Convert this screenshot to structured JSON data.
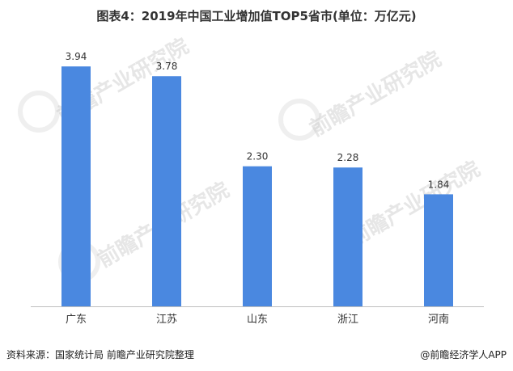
{
  "title": "图表4：2019年中国工业增加值TOP5省市(单位：万亿元)",
  "watermark": "前瞻产业研究院",
  "footer": {
    "source": "资料来源：国家统计局 前瞻产业研究院整理",
    "credit": "@前瞻经济学人APP"
  },
  "colors": {
    "bar": "#4a88e0",
    "axis": "#bfbfbf",
    "text": "#333333"
  },
  "chart_data": {
    "type": "bar",
    "title": "图表4：2019年中国工业增加值TOP5省市(单位：万亿元)",
    "categories": [
      "广东",
      "江苏",
      "山东",
      "浙江",
      "河南"
    ],
    "values": [
      3.94,
      3.78,
      2.3,
      2.28,
      1.84
    ],
    "value_labels": [
      "3.94",
      "3.78",
      "2.30",
      "2.28",
      "1.84"
    ],
    "ylim": [
      0,
      4.5
    ],
    "grid": false,
    "legend": "none"
  }
}
